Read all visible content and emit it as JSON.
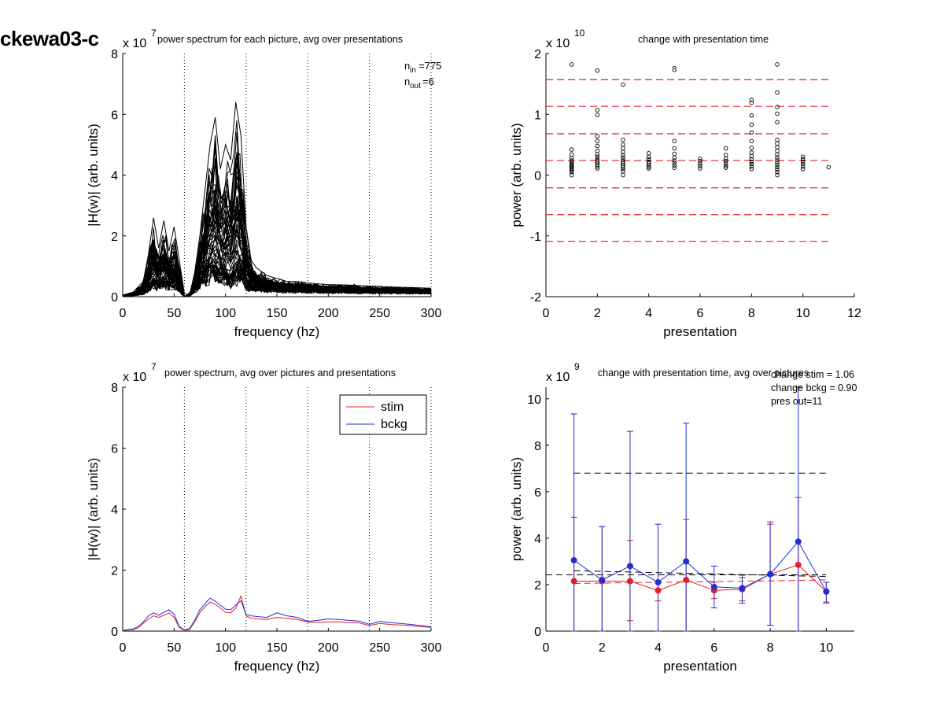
{
  "figure": {
    "id_label": "ckewa03-c"
  },
  "chart_data": [
    {
      "panel": "top-left",
      "type": "line",
      "title": "power spectrum for each picture, avg over presentations",
      "xlabel": "frequency (hz)",
      "ylabel": "|H(w)| (arb. units)",
      "exponent": "x 10",
      "exponent_power": "7",
      "xlim": [
        0,
        300
      ],
      "ylim": [
        0,
        8
      ],
      "xticks": [
        0,
        50,
        100,
        150,
        200,
        250,
        300
      ],
      "yticks": [
        0,
        2,
        4,
        6,
        8
      ],
      "vlines": [
        60,
        120,
        180,
        240,
        300
      ],
      "annotations": [
        "n",
        "in",
        "=775",
        "n",
        "out",
        "=6"
      ],
      "line_color": "#000000",
      "series_count_rendered": 60,
      "envelope_x": [
        0,
        10,
        20,
        25,
        30,
        35,
        40,
        45,
        50,
        55,
        60,
        65,
        70,
        75,
        80,
        85,
        90,
        95,
        100,
        105,
        110,
        115,
        120,
        125,
        130,
        140,
        150,
        160,
        170,
        180,
        200,
        220,
        240,
        260,
        280,
        300
      ],
      "envelope_max": [
        0.05,
        0.15,
        0.5,
        1.4,
        2.6,
        1.6,
        2.5,
        1.5,
        2.3,
        1.2,
        0.1,
        0.05,
        0.8,
        2.0,
        3.5,
        5.0,
        5.9,
        4.2,
        5.0,
        4.5,
        6.4,
        5.3,
        2.3,
        1.2,
        0.95,
        0.7,
        0.6,
        0.5,
        0.5,
        0.45,
        0.4,
        0.38,
        0.35,
        0.32,
        0.3,
        0.28
      ],
      "envelope_mean": [
        0.02,
        0.05,
        0.15,
        0.35,
        0.5,
        0.45,
        0.55,
        0.5,
        0.6,
        0.3,
        0.03,
        0.02,
        0.25,
        0.55,
        0.8,
        0.95,
        0.9,
        0.75,
        0.7,
        0.65,
        0.8,
        1.0,
        0.45,
        0.4,
        0.35,
        0.33,
        0.3,
        0.28,
        0.27,
        0.25,
        0.24,
        0.23,
        0.22,
        0.2,
        0.19,
        0.18
      ]
    },
    {
      "panel": "top-right",
      "type": "scatter",
      "title": "change with presentation time",
      "xlabel": "presentation",
      "ylabel": "power (arb. units)",
      "exponent": "x 10",
      "exponent_power": "10",
      "xlim": [
        0,
        12
      ],
      "ylim": [
        -2,
        2
      ],
      "xticks": [
        0,
        2,
        4,
        6,
        8,
        10,
        12
      ],
      "yticks": [
        -2,
        -1,
        0,
        1,
        2
      ],
      "hlines_red_dashed": [
        1.57,
        1.13,
        0.68,
        0.24,
        -0.21,
        -0.65,
        -1.09
      ],
      "outlier_labels": [
        {
          "x": 5,
          "y": 1.75,
          "text": "8"
        }
      ],
      "points": [
        {
          "x": 1,
          "y": [
            1.82,
            0.42,
            0.34,
            0.28,
            0.24,
            0.21,
            0.19,
            0.17,
            0.15,
            0.13,
            0.11,
            0.09,
            0.07,
            0.05,
            0.0
          ]
        },
        {
          "x": 2,
          "y": [
            1.72,
            1.07,
            0.99,
            0.64,
            0.56,
            0.48,
            0.4,
            0.34,
            0.3,
            0.26,
            0.23,
            0.2,
            0.17,
            0.14,
            0.11
          ]
        },
        {
          "x": 3,
          "y": [
            1.49,
            0.58,
            0.5,
            0.44,
            0.38,
            0.33,
            0.29,
            0.25,
            0.22,
            0.19,
            0.16,
            0.13,
            0.1,
            0.06,
            0.0
          ]
        },
        {
          "x": 4,
          "y": [
            0.36,
            0.3,
            0.26,
            0.22,
            0.19,
            0.16,
            0.13,
            0.11
          ]
        },
        {
          "x": 5,
          "y": [
            0.56,
            0.44,
            0.35,
            0.29,
            0.24,
            0.2,
            0.16,
            0.12
          ]
        },
        {
          "x": 6,
          "y": [
            0.27,
            0.23,
            0.19,
            0.15,
            0.11
          ]
        },
        {
          "x": 7,
          "y": [
            0.44,
            0.33,
            0.27,
            0.23,
            0.19,
            0.15,
            0.12
          ]
        },
        {
          "x": 8,
          "y": [
            1.24,
            1.19,
            0.98,
            0.83,
            0.7,
            0.56,
            0.45,
            0.37,
            0.31,
            0.26,
            0.22,
            0.18,
            0.14,
            0.1
          ]
        },
        {
          "x": 9,
          "y": [
            1.82,
            1.36,
            1.12,
            1.01,
            0.87,
            0.58,
            0.52,
            0.46,
            0.4,
            0.34,
            0.29,
            0.25,
            0.21,
            0.17,
            0.13,
            0.09,
            0.05,
            0.0
          ]
        },
        {
          "x": 10,
          "y": [
            0.3,
            0.26,
            0.22,
            0.18,
            0.14,
            0.1
          ]
        },
        {
          "x": 11,
          "y": [
            0.13
          ]
        }
      ]
    },
    {
      "panel": "bottom-left",
      "type": "line",
      "title": "power spectrum, avg over pictures and presentations",
      "xlabel": "frequency (hz)",
      "ylabel": "|H(w)| (arb. units)",
      "exponent": "x 10",
      "exponent_power": "7",
      "xlim": [
        0,
        300
      ],
      "ylim": [
        0,
        8
      ],
      "xticks": [
        0,
        50,
        100,
        150,
        200,
        250,
        300
      ],
      "yticks": [
        0,
        2,
        4,
        6,
        8
      ],
      "vlines": [
        60,
        120,
        180,
        240,
        300
      ],
      "legend": "top-right",
      "x": [
        0,
        10,
        15,
        20,
        25,
        30,
        35,
        40,
        45,
        50,
        55,
        60,
        65,
        70,
        75,
        80,
        85,
        90,
        95,
        100,
        105,
        110,
        115,
        120,
        125,
        130,
        140,
        150,
        160,
        170,
        180,
        190,
        200,
        210,
        220,
        230,
        240,
        250,
        260,
        270,
        280,
        290,
        300
      ],
      "series": [
        {
          "name": "stim",
          "color": "#e0202a",
          "values": [
            0.02,
            0.05,
            0.1,
            0.25,
            0.4,
            0.5,
            0.45,
            0.52,
            0.6,
            0.45,
            0.12,
            0.03,
            0.05,
            0.3,
            0.6,
            0.8,
            0.95,
            0.88,
            0.75,
            0.62,
            0.6,
            0.75,
            1.15,
            0.5,
            0.42,
            0.4,
            0.38,
            0.45,
            0.42,
            0.38,
            0.3,
            0.28,
            0.3,
            0.3,
            0.28,
            0.27,
            0.18,
            0.25,
            0.22,
            0.2,
            0.18,
            0.15,
            0.12
          ]
        },
        {
          "name": "bckg",
          "color": "#1f2fd6",
          "values": [
            0.02,
            0.07,
            0.15,
            0.3,
            0.5,
            0.6,
            0.52,
            0.62,
            0.7,
            0.55,
            0.15,
            0.04,
            0.08,
            0.35,
            0.7,
            0.9,
            1.08,
            0.98,
            0.85,
            0.72,
            0.7,
            0.85,
            1.0,
            0.55,
            0.5,
            0.48,
            0.45,
            0.6,
            0.5,
            0.45,
            0.32,
            0.35,
            0.4,
            0.38,
            0.35,
            0.33,
            0.22,
            0.32,
            0.28,
            0.25,
            0.22,
            0.18,
            0.14
          ]
        }
      ]
    },
    {
      "panel": "bottom-right",
      "type": "line",
      "title": "change with presentation time, avg over pictures",
      "xlabel": "presentation",
      "ylabel": "power (arb. units)",
      "exponent": "x 10",
      "exponent_power": "9",
      "xlim": [
        0,
        11
      ],
      "ylim": [
        0,
        10.5
      ],
      "xticks": [
        0,
        2,
        4,
        6,
        8,
        10
      ],
      "yticks": [
        0,
        2,
        4,
        6,
        8,
        10
      ],
      "annotations": [
        "change stim = 1.06",
        "change bckg = 0.90",
        "pres out=11"
      ],
      "hlines": [
        {
          "color": "#000000",
          "y": 6.8,
          "x0": 1,
          "x1": 10
        },
        {
          "color": "#000000",
          "y": 2.42,
          "x0": 0,
          "x1": 10
        },
        {
          "color": "#000000",
          "y": [
            2.6,
            2.35
          ],
          "x0": 1,
          "x1": 10
        },
        {
          "color": "#e0202a",
          "y": [
            2.05,
            2.2
          ],
          "x0": 1,
          "x1": 10
        }
      ],
      "x": [
        1,
        2,
        3,
        4,
        5,
        6,
        7,
        8,
        9,
        10
      ],
      "series": [
        {
          "name": "stim",
          "color": "#e0202a",
          "values": [
            2.15,
            2.15,
            2.15,
            1.75,
            2.2,
            1.75,
            1.8,
            2.45,
            2.85,
            1.7
          ],
          "err_low": [
            0.0,
            0.0,
            0.45,
            1.3,
            0.0,
            1.4,
            1.3,
            0.25,
            0.0,
            1.2
          ],
          "err_high": [
            4.9,
            4.5,
            3.9,
            2.1,
            4.8,
            2.1,
            2.4,
            4.6,
            5.75,
            2.1
          ]
        },
        {
          "name": "bckg",
          "color": "#1f2fd6",
          "values": [
            3.05,
            2.2,
            2.8,
            2.1,
            3.0,
            1.9,
            1.85,
            2.45,
            3.85,
            1.7
          ],
          "err_low": [
            0.0,
            0.0,
            0.0,
            0.0,
            0.0,
            1.0,
            1.2,
            0.25,
            0.0,
            1.25
          ],
          "err_high": [
            9.35,
            4.5,
            8.6,
            4.6,
            8.95,
            2.8,
            2.3,
            4.7,
            10.5,
            2.1
          ]
        }
      ]
    }
  ]
}
